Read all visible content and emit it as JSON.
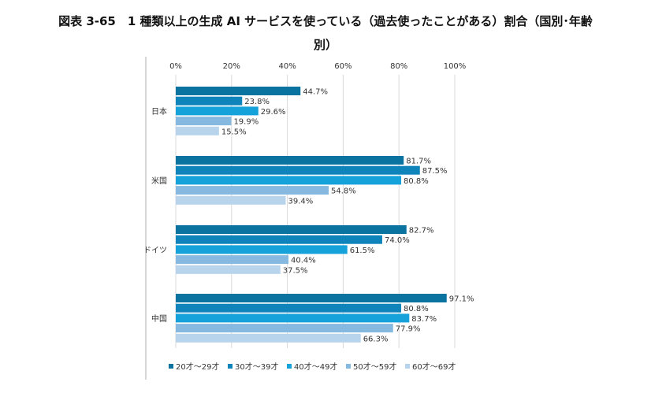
{
  "chart_data": {
    "type": "bar",
    "orientation": "horizontal",
    "title_line1": "図表 3-65　1 種類以上の生成 AI サービスを使っている（過去使ったことがある）割合（国別･年齢",
    "title_line2": "別）",
    "categories": [
      "日本",
      "米国",
      "ドイツ",
      "中国"
    ],
    "xlim": [
      0,
      100
    ],
    "x_ticks": [
      "0%",
      "20%",
      "40%",
      "60%",
      "80%",
      "100%"
    ],
    "x_tick_values": [
      0,
      20,
      40,
      60,
      80,
      100
    ],
    "grid": true,
    "legend_position": "bottom",
    "series": [
      {
        "name": "20才～29才",
        "color": "#0a73a0",
        "values": [
          44.7,
          81.7,
          82.7,
          97.1
        ]
      },
      {
        "name": "30才～39才",
        "color": "#0e84ba",
        "values": [
          23.8,
          87.5,
          74.0,
          80.8
        ]
      },
      {
        "name": "40才～49才",
        "color": "#15a1d9",
        "values": [
          29.6,
          80.8,
          61.5,
          83.7
        ]
      },
      {
        "name": "50才～59才",
        "color": "#86b9df",
        "values": [
          19.9,
          54.8,
          40.4,
          77.9
        ]
      },
      {
        "name": "60才～69才",
        "color": "#b8d4ec",
        "values": [
          15.5,
          39.4,
          37.5,
          66.3
        ]
      }
    ],
    "value_format": "%"
  }
}
